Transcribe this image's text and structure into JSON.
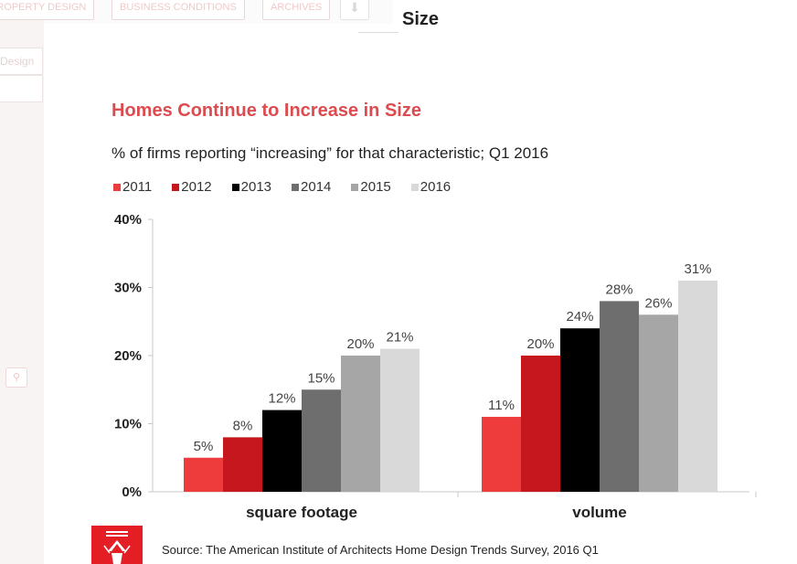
{
  "background": {
    "nav_tabs": [
      "Property Design",
      "Business Conditions",
      "Archives"
    ],
    "side_items": [
      "Design"
    ]
  },
  "modal": {
    "title": "Size"
  },
  "chart_data": {
    "type": "bar",
    "title": "Homes Continue to Increase in Size",
    "subtitle": "% of firms reporting “increasing” for that characteristic; Q1 2016",
    "categories": [
      "square footage",
      "volume"
    ],
    "series": [
      {
        "name": "2011",
        "color": "#ee3b3b",
        "values": [
          5,
          11
        ],
        "labels": [
          "5%",
          "11%"
        ]
      },
      {
        "name": "2012",
        "color": "#c5171d",
        "values": [
          8,
          20
        ],
        "labels": [
          "8%",
          "20%"
        ]
      },
      {
        "name": "2013",
        "color": "#000000",
        "values": [
          12,
          24
        ],
        "labels": [
          "12%",
          "24%"
        ]
      },
      {
        "name": "2014",
        "color": "#6e6e6e",
        "values": [
          15,
          28
        ],
        "labels": [
          "15%",
          "28%"
        ]
      },
      {
        "name": "2015",
        "color": "#a6a6a6",
        "values": [
          20,
          26
        ],
        "labels": [
          "20%",
          "26%"
        ]
      },
      {
        "name": "2016",
        "color": "#d9d9d9",
        "values": [
          21,
          31
        ],
        "labels": [
          "21%",
          "31%"
        ]
      }
    ],
    "ylim": [
      0,
      40
    ],
    "yticks": [
      0,
      10,
      20,
      30,
      40
    ],
    "ytick_labels": [
      "0%",
      "10%",
      "20%",
      "30%",
      "40%"
    ],
    "grid": false,
    "legend_position": "top-left"
  },
  "source": "Source: The American Institute of Architects Home Design Trends Survey, 2016 Q1"
}
